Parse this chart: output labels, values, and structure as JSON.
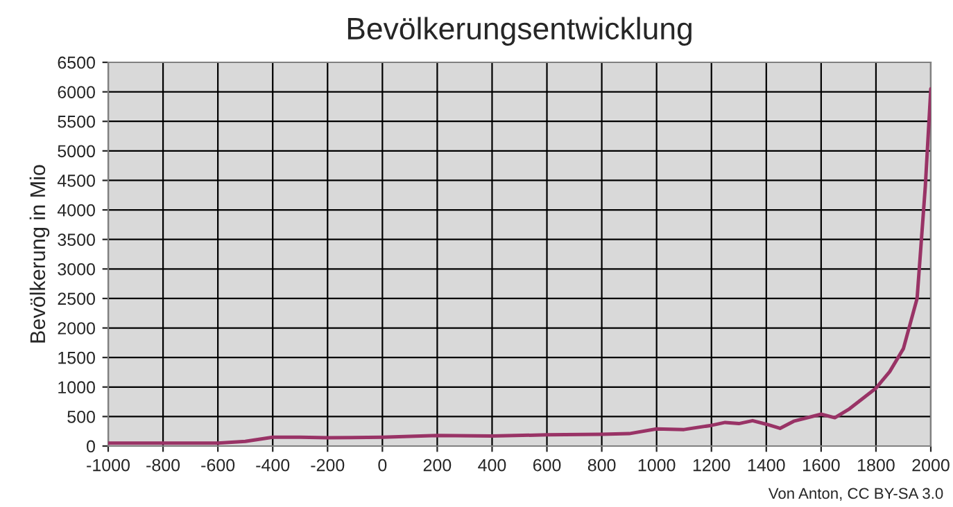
{
  "chart_data": {
    "type": "line",
    "title": "Bevölkerungsentwicklung",
    "ylabel": "Bevölkerung in Mio",
    "x": [
      -1000,
      -800,
      -600,
      -500,
      -400,
      -300,
      -200,
      0,
      200,
      400,
      600,
      800,
      900,
      1000,
      1100,
      1200,
      1250,
      1300,
      1350,
      1400,
      1450,
      1500,
      1600,
      1650,
      1700,
      1800,
      1850,
      1900,
      1950,
      1980,
      2000
    ],
    "series": [
      {
        "color": "#993366",
        "values": [
          50,
          50,
          50,
          80,
          150,
          150,
          140,
          150,
          180,
          170,
          190,
          200,
          210,
          290,
          280,
          350,
          400,
          380,
          430,
          370,
          300,
          420,
          540,
          480,
          620,
          980,
          1260,
          1650,
          2500,
          4400,
          6050
        ]
      }
    ],
    "xlim": [
      -1000,
      2000
    ],
    "xticks": [
      -1000,
      -800,
      -600,
      -400,
      -200,
      0,
      200,
      400,
      600,
      800,
      1000,
      1200,
      1400,
      1600,
      1800,
      2000
    ],
    "ylim": [
      0,
      6500
    ],
    "yticks": [
      0,
      500,
      1000,
      1500,
      2000,
      2500,
      3000,
      3500,
      4000,
      4500,
      5000,
      5500,
      6000,
      6500
    ],
    "grid": true,
    "marker": "none",
    "line_style": "solid",
    "annotations": [
      "Von Anton, CC BY-SA 3.0"
    ]
  }
}
